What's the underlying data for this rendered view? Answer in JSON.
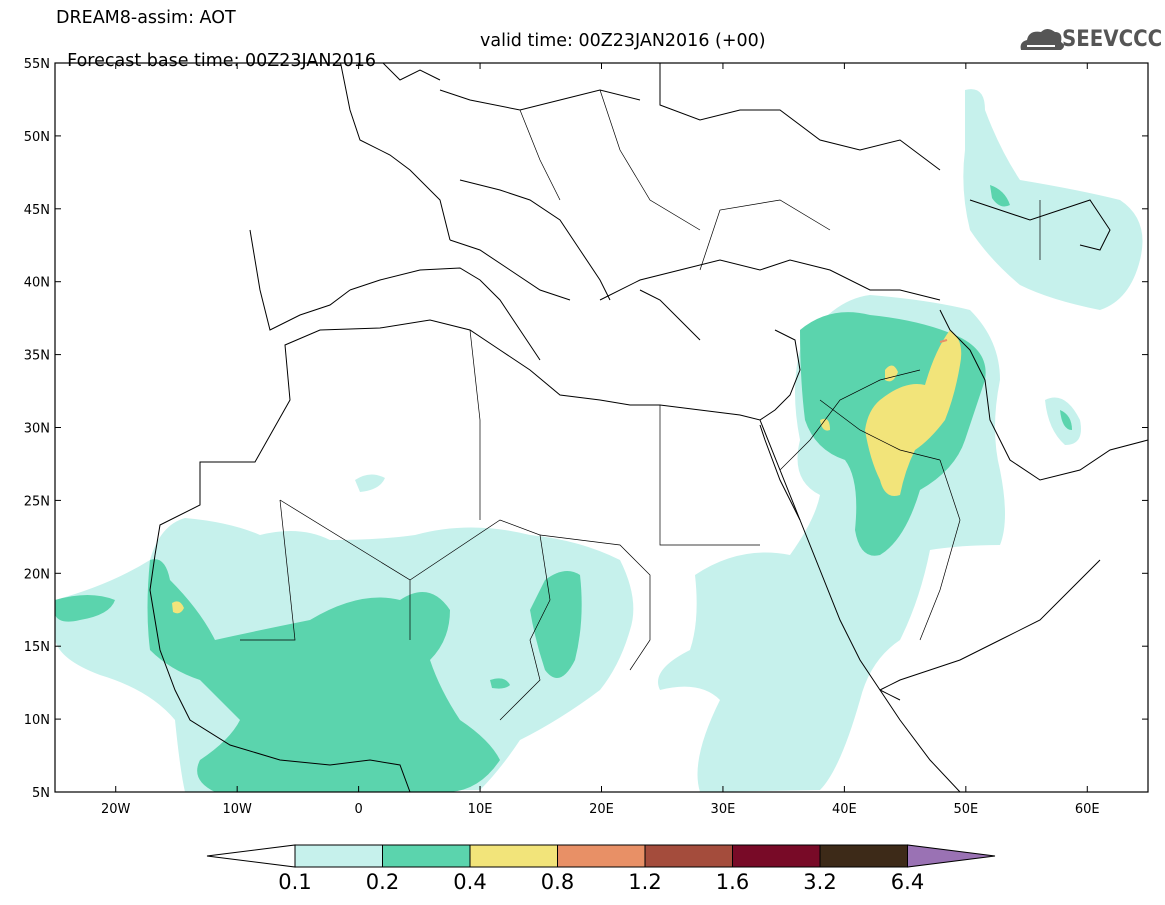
{
  "header": {
    "line1": "DREAM8-assim: AOT",
    "base_time": "Forecast base time: 00Z23JAN2016",
    "valid_time": "valid time: 00Z23JAN2016 (+00)"
  },
  "logo": {
    "text": "SEEVCCC",
    "icon": "cloud-icon"
  },
  "map": {
    "lat_range": [
      5,
      55
    ],
    "lon_range": [
      -25,
      65
    ],
    "lat_labels": [
      "55N",
      "50N",
      "45N",
      "40N",
      "35N",
      "30N",
      "25N",
      "20N",
      "15N",
      "10N",
      "5N"
    ],
    "lon_labels": [
      "20W",
      "10W",
      "0",
      "10E",
      "20E",
      "30E",
      "40E",
      "50E",
      "60E"
    ]
  },
  "colorbar": {
    "labels": [
      "0.1",
      "0.2",
      "0.4",
      "0.8",
      "1.2",
      "1.6",
      "3.2",
      "6.4"
    ],
    "colors": [
      "#c6f1ec",
      "#5bd4ad",
      "#f2e47a",
      "#e89066",
      "#a44c3c",
      "#780a27",
      "#3d2a18",
      "#9a72b4"
    ]
  }
}
